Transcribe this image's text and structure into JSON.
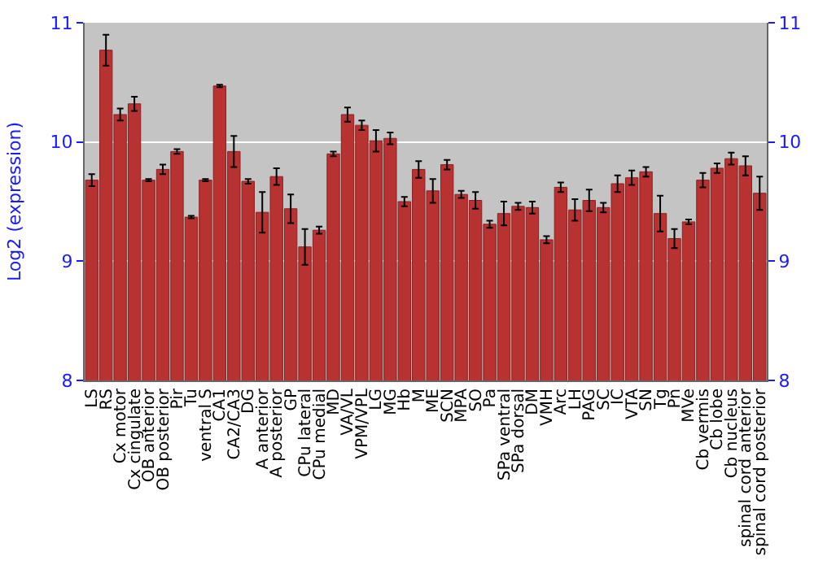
{
  "chart_data": {
    "type": "bar",
    "ylabel": "Log2 (expression)",
    "categories": [
      "LS",
      "RS",
      "Cx motor",
      "Cx cingulate",
      "OB anterior",
      "OB posterior",
      "Pir",
      "Tu",
      "ventral S",
      "CA1",
      "CA2/CA3",
      "DG",
      "A anterior",
      "A posterior",
      "GP",
      "CPu lateral",
      "CPu medial",
      "MD",
      "VA/VL",
      "VPM/VPL",
      "LG",
      "MG",
      "Hb",
      "M",
      "ME",
      "SCN",
      "MPA",
      "SO",
      "Pa",
      "SPa ventral",
      "SPa dorsal",
      "DM",
      "VMH",
      "Arc",
      "LH",
      "PAG",
      "SC",
      "IC",
      "VTA",
      "SN",
      "Tg",
      "Pn",
      "MVe",
      "Cb vermis",
      "Cb lobe",
      "Cb nucleus",
      "spinal cord anterior",
      "spinal cord posterior"
    ],
    "series": [
      {
        "color": "#b83232",
        "values": [
          9.68,
          10.77,
          10.23,
          10.32,
          9.68,
          9.77,
          9.92,
          9.37,
          9.68,
          10.47,
          9.92,
          9.67,
          9.41,
          9.71,
          9.44,
          9.12,
          9.26,
          9.9,
          10.23,
          10.14,
          10.01,
          10.03,
          9.5,
          9.77,
          9.59,
          9.81,
          9.56,
          9.51,
          9.31,
          9.4,
          9.46,
          9.45,
          9.18,
          9.62,
          9.43,
          9.51,
          9.45,
          9.65,
          9.7,
          9.75,
          9.4,
          9.19,
          9.33,
          9.68,
          9.78,
          9.86,
          9.8,
          9.57
        ],
        "errors": [
          0.05,
          0.13,
          0.05,
          0.06,
          0.01,
          0.04,
          0.02,
          0.01,
          0.01,
          0.01,
          0.13,
          0.02,
          0.17,
          0.07,
          0.12,
          0.15,
          0.03,
          0.02,
          0.06,
          0.04,
          0.09,
          0.05,
          0.04,
          0.07,
          0.1,
          0.04,
          0.03,
          0.07,
          0.03,
          0.1,
          0.03,
          0.05,
          0.03,
          0.04,
          0.09,
          0.09,
          0.04,
          0.07,
          0.06,
          0.04,
          0.15,
          0.08,
          0.02,
          0.06,
          0.04,
          0.05,
          0.08,
          0.14
        ]
      }
    ],
    "ylim": [
      8,
      11
    ],
    "yticks": [
      8,
      9,
      10,
      11
    ],
    "y2lim": [
      8,
      11
    ],
    "y2ticks": [
      8,
      9,
      10,
      11
    ],
    "grid": "y",
    "legend": false
  }
}
